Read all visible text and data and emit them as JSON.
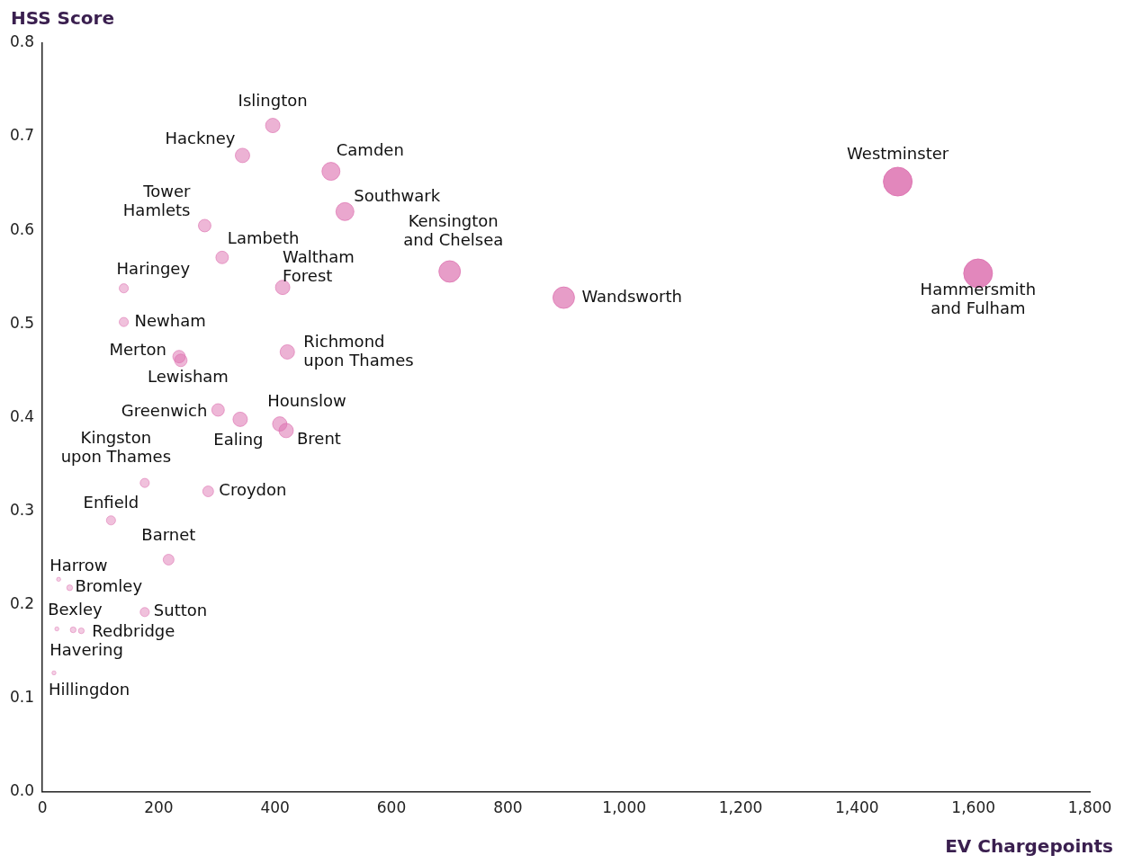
{
  "chart_data": {
    "type": "bubble",
    "xlabel": "EV Chargepoints",
    "ylabel": "HSS Score",
    "xlim": [
      0,
      1800
    ],
    "ylim": [
      0,
      0.8
    ],
    "xticks": [
      {
        "value": 0,
        "label": "0"
      },
      {
        "value": 200,
        "label": "200"
      },
      {
        "value": 400,
        "label": "400"
      },
      {
        "value": 600,
        "label": "600"
      },
      {
        "value": 800,
        "label": "800"
      },
      {
        "value": 1000,
        "label": "1,000"
      },
      {
        "value": 1200,
        "label": "1,200"
      },
      {
        "value": 1400,
        "label": "1,400"
      },
      {
        "value": 1600,
        "label": "1,600"
      },
      {
        "value": 1800,
        "label": "1,800"
      }
    ],
    "yticks": [
      {
        "value": 0,
        "label": "0.0"
      },
      {
        "value": 0.1,
        "label": "0.1"
      },
      {
        "value": 0.2,
        "label": "0.2"
      },
      {
        "value": 0.3,
        "label": "0.3"
      },
      {
        "value": 0.4,
        "label": "0.4"
      },
      {
        "value": 0.5,
        "label": "0.5"
      },
      {
        "value": 0.6,
        "label": "0.6"
      },
      {
        "value": 0.7,
        "label": "0.7"
      },
      {
        "value": 0.8,
        "label": "0.8"
      }
    ],
    "grid": false,
    "legend": false,
    "series": [
      {
        "color": "#dd72b0",
        "x": [
          396,
          344,
          496,
          520,
          279,
          309,
          140,
          413,
          700,
          896,
          1470,
          1608,
          140,
          235,
          238,
          421,
          302,
          340,
          408,
          419,
          176,
          285,
          118,
          217,
          28,
          47,
          176,
          25,
          53,
          67,
          20
        ],
        "values": [
          0.712,
          0.68,
          0.663,
          0.62,
          0.605,
          0.571,
          0.538,
          0.539,
          0.556,
          0.528,
          0.652,
          0.554,
          0.502,
          0.465,
          0.461,
          0.47,
          0.408,
          0.398,
          0.393,
          0.386,
          0.33,
          0.321,
          0.29,
          0.248,
          0.227,
          0.218,
          0.192,
          0.174,
          0.173,
          0.172,
          0.127
        ],
        "sizes": [
          0.25,
          0.25,
          0.39,
          0.39,
          0.19,
          0.19,
          0.1,
          0.25,
          0.56,
          0.56,
          1,
          1,
          0.1,
          0.19,
          0.19,
          0.25,
          0.19,
          0.25,
          0.25,
          0.25,
          0.1,
          0.14,
          0.1,
          0.14,
          0.02,
          0.04,
          0.1,
          0.02,
          0.04,
          0.04,
          0.02
        ]
      }
    ],
    "annotations": [
      {
        "text": "Islington",
        "x": 396,
        "y": 0.712
      },
      {
        "text": "Hackney",
        "x": 344,
        "y": 0.68
      },
      {
        "text": "Camden",
        "x": 496,
        "y": 0.663
      },
      {
        "text": "Southwark",
        "x": 520,
        "y": 0.62
      },
      {
        "text": "Tower Hamlets",
        "x": 279,
        "y": 0.605
      },
      {
        "text": "Lambeth",
        "x": 309,
        "y": 0.571
      },
      {
        "text": "Haringey",
        "x": 140,
        "y": 0.538
      },
      {
        "text": "Waltham Forest",
        "x": 413,
        "y": 0.539
      },
      {
        "text": "Kensington and Chelsea",
        "x": 700,
        "y": 0.556
      },
      {
        "text": "Wandsworth",
        "x": 896,
        "y": 0.528
      },
      {
        "text": "Westminster",
        "x": 1470,
        "y": 0.652
      },
      {
        "text": "Hammersmith and Fulham",
        "x": 1608,
        "y": 0.554
      },
      {
        "text": "Newham",
        "x": 140,
        "y": 0.502
      },
      {
        "text": "Merton",
        "x": 235,
        "y": 0.465
      },
      {
        "text": "Lewisham",
        "x": 238,
        "y": 0.461
      },
      {
        "text": "Richmond upon Thames",
        "x": 421,
        "y": 0.47
      },
      {
        "text": "Greenwich",
        "x": 302,
        "y": 0.408
      },
      {
        "text": "Ealing",
        "x": 340,
        "y": 0.398
      },
      {
        "text": "Hounslow",
        "x": 408,
        "y": 0.393
      },
      {
        "text": "Brent",
        "x": 419,
        "y": 0.386
      },
      {
        "text": "Kingston upon Thames",
        "x": 176,
        "y": 0.33
      },
      {
        "text": "Croydon",
        "x": 285,
        "y": 0.321
      },
      {
        "text": "Enfield",
        "x": 118,
        "y": 0.29
      },
      {
        "text": "Barnet",
        "x": 217,
        "y": 0.248
      },
      {
        "text": "Harrow",
        "x": 28,
        "y": 0.227
      },
      {
        "text": "Bromley",
        "x": 47,
        "y": 0.218
      },
      {
        "text": "Sutton",
        "x": 176,
        "y": 0.192
      },
      {
        "text": "Bexley",
        "x": 25,
        "y": 0.174
      },
      {
        "text": "Havering",
        "x": 53,
        "y": 0.173
      },
      {
        "text": "Redbridge",
        "x": 67,
        "y": 0.172
      },
      {
        "text": "Hillingdon",
        "x": 20,
        "y": 0.127
      }
    ]
  }
}
